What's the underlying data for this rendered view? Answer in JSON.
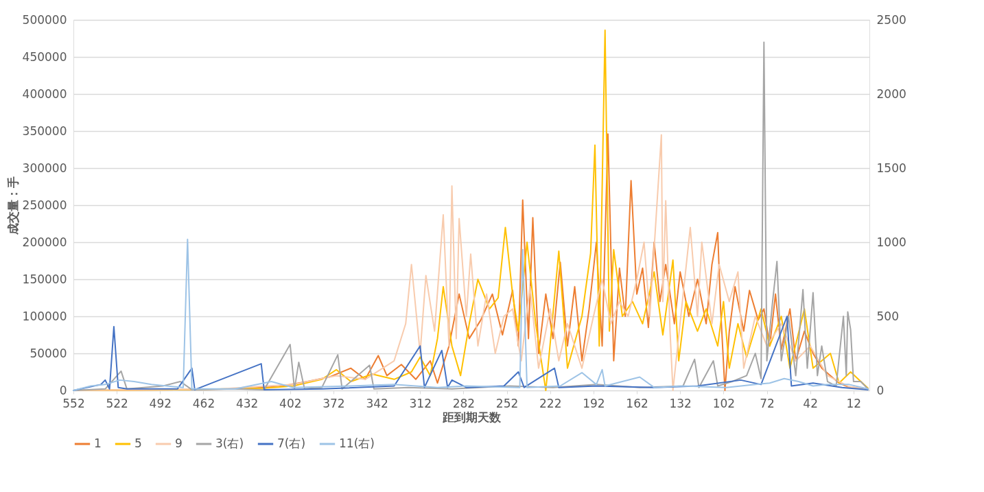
{
  "chart_data": {
    "type": "line",
    "xlabel": "距到期天数",
    "ylabel": "成交量：手",
    "xlim": [
      552,
      1
    ],
    "xticks": [
      552,
      522,
      492,
      462,
      432,
      402,
      372,
      342,
      312,
      282,
      252,
      222,
      192,
      162,
      132,
      102,
      72,
      42,
      12
    ],
    "ylim": [
      0,
      500000
    ],
    "yticks": [
      0,
      50000,
      100000,
      150000,
      200000,
      250000,
      300000,
      350000,
      400000,
      450000,
      500000
    ],
    "y2lim": [
      0,
      2500
    ],
    "y2ticks": [
      0,
      500,
      1000,
      1500,
      2000,
      2500
    ],
    "grid": "y",
    "legend": "bottom",
    "marker": "none",
    "line_style": "solid",
    "series": [
      {
        "name": "1",
        "color": "#ed7d31",
        "x": [
          552,
          520,
          480,
          440,
          410,
          390,
          375,
          360,
          350,
          341,
          335,
          325,
          315,
          305,
          300,
          292,
          285,
          278,
          270,
          262,
          255,
          248,
          244,
          241,
          237,
          234,
          230,
          225,
          220,
          215,
          210,
          205,
          200,
          195,
          190,
          186,
          182,
          178,
          174,
          170,
          166,
          162,
          158,
          154,
          150,
          146,
          142,
          136,
          132,
          126,
          120,
          114,
          110,
          106,
          104,
          101,
          98,
          94,
          88,
          84,
          78,
          74,
          70,
          66,
          62,
          56,
          52,
          46,
          40,
          34,
          28,
          22,
          16,
          8,
          2
        ],
        "values": [
          0,
          500,
          1000,
          2000,
          5000,
          12000,
          18000,
          30000,
          15000,
          47000,
          20000,
          35000,
          15000,
          40000,
          10000,
          60000,
          130000,
          70000,
          95000,
          130000,
          75000,
          135000,
          60000,
          257000,
          70000,
          233000,
          50000,
          130000,
          70000,
          173000,
          60000,
          140000,
          40000,
          110000,
          200000,
          60000,
          346000,
          40000,
          165000,
          100000,
          283000,
          130000,
          165000,
          85000,
          200000,
          120000,
          170000,
          90000,
          160000,
          100000,
          150000,
          90000,
          170000,
          213000,
          110000,
          0,
          80000,
          140000,
          80000,
          135000,
          95000,
          110000,
          60000,
          130000,
          55000,
          110000,
          40000,
          80000,
          50000,
          30000,
          20000,
          10000,
          5000,
          3000,
          2000
        ]
      },
      {
        "name": "5",
        "color": "#ffc000",
        "x": [
          552,
          480,
          420,
          400,
          380,
          370,
          360,
          345,
          330,
          318,
          312,
          305,
          300,
          296,
          290,
          284,
          278,
          272,
          264,
          258,
          253,
          248,
          244,
          238,
          232,
          225,
          216,
          210,
          200,
          194,
          191,
          188,
          184,
          181,
          178,
          172,
          165,
          158,
          150,
          144,
          137,
          133,
          128,
          120,
          114,
          106,
          102,
          98,
          92,
          86,
          76,
          70,
          62,
          56,
          46,
          40,
          28,
          22,
          14,
          2
        ],
        "values": [
          0,
          1000,
          3000,
          6000,
          15000,
          28000,
          12000,
          22000,
          15000,
          25000,
          45000,
          20000,
          70000,
          140000,
          60000,
          20000,
          90000,
          150000,
          110000,
          125000,
          220000,
          130000,
          80000,
          200000,
          90000,
          0,
          188000,
          30000,
          100000,
          185000,
          331000,
          60000,
          486000,
          80000,
          190000,
          100000,
          120000,
          90000,
          160000,
          75000,
          176000,
          40000,
          120000,
          80000,
          110000,
          60000,
          120000,
          30000,
          90000,
          45000,
          110000,
          60000,
          100000,
          30000,
          110000,
          30000,
          50000,
          10000,
          25000,
          3000
        ]
      },
      {
        "name": "9",
        "color": "#f8cbad",
        "x": [
          552,
          450,
          400,
          370,
          350,
          330,
          322,
          318,
          312,
          308,
          302,
          296,
          292,
          290,
          287,
          285,
          280,
          277,
          272,
          266,
          260,
          254,
          248,
          242,
          236,
          230,
          222,
          216,
          210,
          200,
          192,
          186,
          180,
          174,
          168,
          162,
          157,
          153,
          145,
          144,
          142,
          139,
          137,
          125,
          120,
          117,
          110,
          105,
          98,
          92,
          88,
          80,
          72,
          62,
          52,
          42,
          30,
          15,
          2
        ],
        "values": [
          0,
          2000,
          8000,
          20000,
          15000,
          40000,
          90000,
          170000,
          50000,
          155000,
          80000,
          237000,
          60000,
          276000,
          70000,
          232000,
          100000,
          184000,
          60000,
          130000,
          50000,
          100000,
          110000,
          40000,
          140000,
          30000,
          110000,
          40000,
          90000,
          30000,
          100000,
          150000,
          90000,
          120000,
          100000,
          150000,
          200000,
          100000,
          345000,
          120000,
          256000,
          80000,
          0,
          220000,
          100000,
          200000,
          90000,
          170000,
          120000,
          160000,
          30000,
          100000,
          60000,
          90000,
          40000,
          60000,
          20000,
          5000,
          2000
        ]
      },
      {
        "name": "3(右)",
        "color": "#a5a5a5",
        "axis": "y2",
        "x": [
          552,
          530,
          519,
          515,
          490,
          478,
          470,
          440,
          420,
          402,
          399,
          396,
          392,
          380,
          369,
          366,
          347,
          344,
          320,
          290,
          250,
          220,
          190,
          160,
          130,
          122,
          119,
          109,
          106,
          96,
          86,
          80,
          76,
          74,
          72,
          68,
          65,
          62,
          57,
          52,
          47,
          44,
          40,
          37,
          34,
          30,
          24,
          19,
          17,
          16,
          14,
          12,
          7,
          2
        ],
        "values": [
          0,
          10,
          130,
          10,
          30,
          60,
          5,
          10,
          5,
          310,
          10,
          190,
          10,
          20,
          240,
          10,
          170,
          10,
          20,
          10,
          30,
          20,
          40,
          20,
          30,
          210,
          20,
          200,
          30,
          60,
          100,
          250,
          80,
          2350,
          200,
          600,
          870,
          200,
          500,
          100,
          680,
          150,
          660,
          100,
          300,
          60,
          30,
          500,
          100,
          530,
          410,
          60,
          60,
          10
        ]
      },
      {
        "name": "7(右)",
        "color": "#4472c4",
        "axis": "y2",
        "x": [
          552,
          533,
          530,
          527,
          524,
          521,
          515,
          480,
          470,
          468,
          422,
          420,
          380,
          330,
          312,
          309,
          297,
          293,
          290,
          280,
          254,
          244,
          240,
          219,
          216,
          190,
          150,
          120,
          90,
          76,
          58,
          55,
          40,
          20,
          2
        ],
        "values": [
          0,
          40,
          70,
          10,
          430,
          20,
          10,
          10,
          150,
          5,
          180,
          5,
          10,
          30,
          300,
          20,
          270,
          20,
          70,
          20,
          30,
          125,
          20,
          150,
          20,
          30,
          20,
          30,
          70,
          40,
          500,
          30,
          50,
          20,
          5
        ]
      },
      {
        "name": "11(右)",
        "color": "#9dc3e6",
        "axis": "y2",
        "x": [
          552,
          540,
          530,
          520,
          510,
          498,
          476,
          473,
          470,
          440,
          415,
          400,
          360,
          330,
          300,
          280,
          243,
          241,
          238,
          215,
          200,
          190,
          186,
          184,
          160,
          150,
          130,
          100,
          80,
          70,
          60,
          50,
          40,
          30,
          15,
          2
        ],
        "values": [
          0,
          30,
          40,
          70,
          60,
          40,
          20,
          1020,
          10,
          10,
          60,
          20,
          30,
          40,
          20,
          30,
          20,
          950,
          20,
          30,
          120,
          40,
          140,
          30,
          90,
          20,
          30,
          20,
          40,
          50,
          80,
          60,
          30,
          40,
          40,
          10
        ]
      }
    ]
  }
}
